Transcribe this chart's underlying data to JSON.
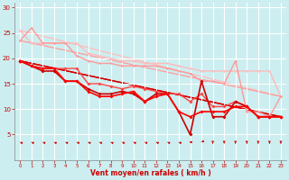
{
  "xlabel": "Vent moyen/en rafales ( km/h )",
  "bg_color": "#cceef0",
  "grid_color": "#aadddd",
  "axis_color": "#ff0000",
  "label_color": "#cc0000",
  "xlim": [
    -0.5,
    23.5
  ],
  "ylim": [
    0,
    31
  ],
  "yticks": [
    5,
    10,
    15,
    20,
    25,
    30
  ],
  "xticks": [
    0,
    1,
    2,
    3,
    4,
    5,
    6,
    7,
    8,
    9,
    10,
    11,
    12,
    13,
    14,
    15,
    16,
    17,
    18,
    19,
    20,
    21,
    22,
    23
  ],
  "lines": [
    {
      "x": [
        0,
        1,
        2,
        3,
        4,
        5,
        6,
        7,
        8,
        9,
        10,
        11,
        12,
        13,
        14,
        15,
        16,
        17,
        18,
        19,
        20,
        21,
        22,
        23
      ],
      "y": [
        25.5,
        23.0,
        23.0,
        23.0,
        23.0,
        23.0,
        21.0,
        20.5,
        20.0,
        19.5,
        19.5,
        19.0,
        19.0,
        19.0,
        18.5,
        18.0,
        17.5,
        17.5,
        17.5,
        17.5,
        17.5,
        17.5,
        17.5,
        12.5
      ],
      "color": "#ffbbbb",
      "lw": 1.0,
      "marker": "D",
      "ms": 1.5,
      "zorder": 2
    },
    {
      "x": [
        0,
        1,
        2,
        3,
        4,
        5,
        6,
        7,
        8,
        9,
        10,
        11,
        12,
        13,
        14,
        15,
        16,
        17,
        18,
        19,
        20,
        21,
        22,
        23
      ],
      "y": [
        23.5,
        26.0,
        23.0,
        23.0,
        23.0,
        20.5,
        19.5,
        19.0,
        19.0,
        18.5,
        18.5,
        18.5,
        18.5,
        18.0,
        17.5,
        17.0,
        15.5,
        15.5,
        15.0,
        19.5,
        9.5,
        9.5,
        8.5,
        12.5
      ],
      "color": "#ff9999",
      "lw": 1.0,
      "marker": "D",
      "ms": 1.5,
      "zorder": 2
    },
    {
      "x": [
        0,
        1,
        2,
        3,
        4,
        5,
        6,
        7,
        8,
        9,
        10,
        11,
        12,
        13,
        14,
        15,
        16,
        17,
        18,
        19,
        20,
        21,
        22,
        23
      ],
      "y": [
        19.5,
        18.5,
        18.0,
        18.0,
        18.0,
        18.0,
        15.0,
        15.0,
        14.5,
        14.0,
        14.5,
        14.0,
        13.5,
        13.0,
        13.0,
        11.5,
        13.0,
        10.5,
        10.5,
        11.5,
        10.5,
        8.5,
        8.5,
        8.5
      ],
      "color": "#ff4444",
      "lw": 1.0,
      "marker": "D",
      "ms": 2.0,
      "zorder": 3
    },
    {
      "x": [
        0,
        1,
        2,
        3,
        4,
        5,
        6,
        7,
        8,
        9,
        10,
        11,
        12,
        13,
        14,
        15,
        16,
        17,
        18,
        19,
        20,
        21,
        22,
        23
      ],
      "y": [
        19.5,
        18.5,
        17.5,
        17.5,
        15.5,
        15.5,
        14.0,
        13.0,
        13.0,
        13.5,
        13.0,
        11.5,
        13.0,
        13.0,
        9.5,
        5.0,
        15.5,
        8.5,
        8.5,
        11.5,
        10.5,
        8.5,
        8.5,
        8.5
      ],
      "color": "#cc0000",
      "lw": 1.2,
      "marker": "D",
      "ms": 2.0,
      "zorder": 4
    },
    {
      "x": [
        0,
        1,
        2,
        3,
        4,
        5,
        6,
        7,
        8,
        9,
        10,
        11,
        12,
        13,
        14,
        15,
        16,
        17,
        18,
        19,
        20,
        21,
        22,
        23
      ],
      "y": [
        19.5,
        18.5,
        18.0,
        18.0,
        15.5,
        15.5,
        13.5,
        12.5,
        12.5,
        13.0,
        13.5,
        11.5,
        12.5,
        13.0,
        9.5,
        8.5,
        9.5,
        9.5,
        9.5,
        10.5,
        10.5,
        8.5,
        8.5,
        8.5
      ],
      "color": "#ff0000",
      "lw": 1.2,
      "marker": "D",
      "ms": 2.0,
      "zorder": 4
    }
  ],
  "trends": [
    {
      "x": [
        0,
        23
      ],
      "y": [
        25.5,
        12.5
      ],
      "color": "#ffbbbb",
      "lw": 0.9
    },
    {
      "x": [
        0,
        23
      ],
      "y": [
        23.5,
        12.5
      ],
      "color": "#ff9999",
      "lw": 0.9
    },
    {
      "x": [
        0,
        23
      ],
      "y": [
        19.5,
        8.5
      ],
      "color": "#ff0000",
      "lw": 1.0
    },
    {
      "x": [
        0,
        23
      ],
      "y": [
        19.5,
        8.5
      ],
      "color": "#cc0000",
      "lw": 1.0
    }
  ],
  "wind_y": 3.5,
  "wind_angles": [
    225,
    225,
    225,
    225,
    225,
    225,
    225,
    225,
    225,
    225,
    225,
    225,
    225,
    225,
    225,
    270,
    315,
    0,
    0,
    0,
    0,
    0,
    0,
    0
  ]
}
